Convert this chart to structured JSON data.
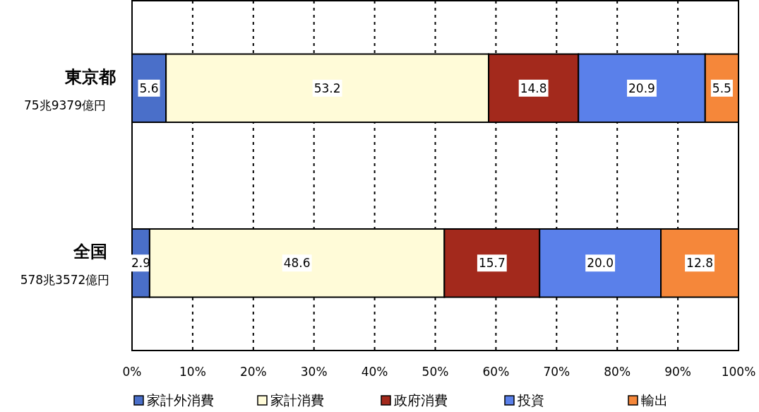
{
  "chart_data": {
    "type": "bar",
    "orientation": "horizontal",
    "stacked": true,
    "categories": [
      "東京都\n75兆9379億円",
      "全国\n578兆3572億円"
    ],
    "series": [
      {
        "name": "家計外消費",
        "color": "#4a6fc9",
        "values": [
          5.6,
          2.9
        ],
        "value_labels": [
          "5.6",
          "2.9"
        ]
      },
      {
        "name": "家計消費",
        "color": "#fffbd8",
        "values": [
          53.2,
          48.6
        ],
        "value_labels": [
          "53.2",
          "48.6"
        ]
      },
      {
        "name": "政府消費",
        "color": "#a3291c",
        "values": [
          14.8,
          15.7
        ],
        "value_labels": [
          "14.8",
          "15.7"
        ]
      },
      {
        "name": "投資",
        "color": "#5a80ea",
        "values": [
          20.9,
          20.0
        ],
        "value_labels": [
          "20.9",
          "20.0"
        ]
      },
      {
        "name": "輸出",
        "color": "#f5873a",
        "values": [
          5.5,
          12.8
        ],
        "value_labels": [
          "5.5",
          "12.8"
        ]
      }
    ],
    "xlim": [
      0,
      100
    ],
    "xticks": [
      {
        "value": 0,
        "label": "0%"
      },
      {
        "value": 10,
        "label": "10%"
      },
      {
        "value": 20,
        "label": "20%"
      },
      {
        "value": 30,
        "label": "30%"
      },
      {
        "value": 40,
        "label": "40%"
      },
      {
        "value": 50,
        "label": "50%"
      },
      {
        "value": 60,
        "label": "60%"
      },
      {
        "value": 70,
        "label": "70%"
      },
      {
        "value": 80,
        "label": "80%"
      },
      {
        "value": 90,
        "label": "90%"
      },
      {
        "value": 100,
        "label": "100%"
      }
    ],
    "grid": "x",
    "legend": "bottom"
  }
}
